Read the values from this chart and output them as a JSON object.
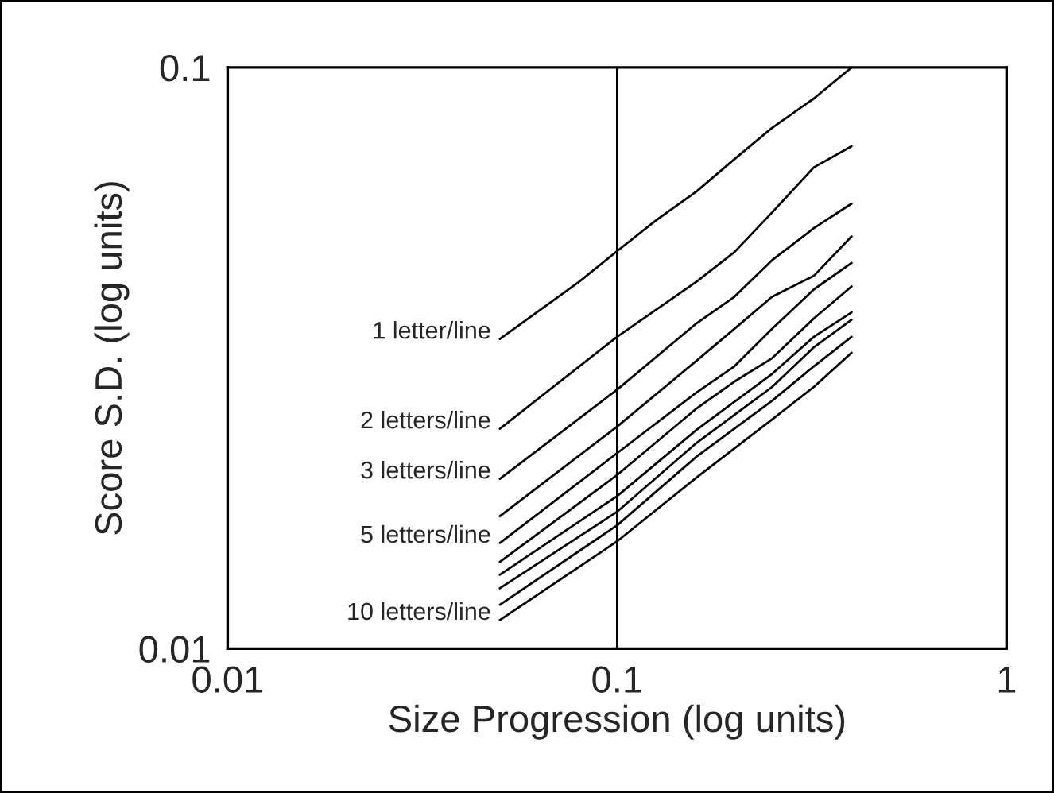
{
  "chart_data": {
    "type": "line",
    "xlabel": "Size Progression (log units)",
    "ylabel": "Score S.D. (log units)",
    "log": "xy",
    "xlim": [
      0.01,
      1
    ],
    "ylim": [
      0.01,
      0.1
    ],
    "xticks": [
      0.01,
      0.1,
      1
    ],
    "yticks": [
      0.01,
      0.1
    ],
    "grid": false,
    "legend": false,
    "marker": "none",
    "line_style": "solid",
    "ref_lines": [
      {
        "axis": "x",
        "value": 0.1,
        "color": "#000000"
      }
    ],
    "series": [
      {
        "name": "1 letter/line",
        "color": "#000000",
        "x": [
          0.05,
          0.08,
          0.1,
          0.126,
          0.16,
          0.2,
          0.25,
          0.32,
          0.4
        ],
        "values": [
          0.0341,
          0.0428,
          0.0483,
          0.0546,
          0.0612,
          0.0695,
          0.0787,
          0.0884,
          0.1
        ]
      },
      {
        "name": "2 letters/line",
        "color": "#000000",
        "x": [
          0.05,
          0.1,
          0.16,
          0.2,
          0.25,
          0.32,
          0.4
        ],
        "values": [
          0.0239,
          0.0344,
          0.0428,
          0.0481,
          0.0563,
          0.0673,
          0.0732
        ]
      },
      {
        "name": "3 letters/line",
        "color": "#000000",
        "x": [
          0.05,
          0.1,
          0.16,
          0.2,
          0.25,
          0.32,
          0.4
        ],
        "values": [
          0.0196,
          0.0279,
          0.0363,
          0.0403,
          0.0466,
          0.0529,
          0.0583
        ]
      },
      {
        "color": "#000000",
        "x": [
          0.05,
          0.1,
          0.16,
          0.2,
          0.25,
          0.32,
          0.4
        ],
        "values": [
          0.0169,
          0.0241,
          0.0313,
          0.0355,
          0.0403,
          0.0438,
          0.0512
        ]
      },
      {
        "name": "5 letters/line",
        "color": "#000000",
        "x": [
          0.05,
          0.1,
          0.16,
          0.2,
          0.25,
          0.32,
          0.4
        ],
        "values": [
          0.0152,
          0.0217,
          0.0276,
          0.0306,
          0.0355,
          0.0415,
          0.0461
        ]
      },
      {
        "color": "#000000",
        "x": [
          0.05,
          0.1,
          0.16,
          0.2,
          0.25,
          0.32,
          0.4
        ],
        "values": [
          0.0141,
          0.0199,
          0.0259,
          0.0288,
          0.0316,
          0.037,
          0.042
        ]
      },
      {
        "color": "#000000",
        "x": [
          0.05,
          0.1,
          0.16,
          0.25,
          0.32,
          0.4
        ],
        "values": [
          0.0134,
          0.0183,
          0.0238,
          0.0297,
          0.0344,
          0.0379
        ]
      },
      {
        "color": "#000000",
        "x": [
          0.05,
          0.1,
          0.16,
          0.25,
          0.32,
          0.4
        ],
        "values": [
          0.0127,
          0.0172,
          0.0226,
          0.0282,
          0.033,
          0.0368
        ]
      },
      {
        "color": "#000000",
        "x": [
          0.05,
          0.1,
          0.16,
          0.25,
          0.32,
          0.4
        ],
        "values": [
          0.0119,
          0.0163,
          0.0214,
          0.0267,
          0.0306,
          0.0344
        ]
      },
      {
        "name": "10 letters/line",
        "color": "#000000",
        "x": [
          0.05,
          0.1,
          0.16,
          0.25,
          0.32,
          0.4
        ],
        "values": [
          0.0112,
          0.0153,
          0.0197,
          0.0248,
          0.0282,
          0.0323
        ]
      }
    ]
  }
}
